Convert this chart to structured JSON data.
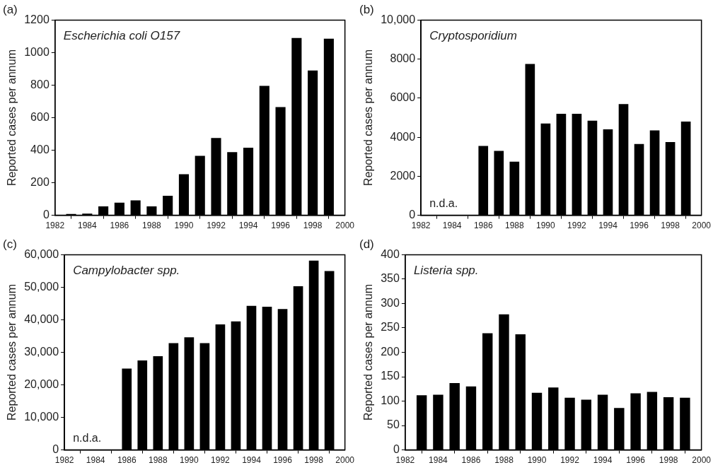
{
  "chart_data": [
    {
      "type": "bar",
      "title": "(a)",
      "ylabel": "Reported cases per annum",
      "annotations": [
        "Escherichia coli O157"
      ],
      "color": "#000000",
      "x": [
        1983,
        1984,
        1985,
        1986,
        1987,
        1988,
        1989,
        1990,
        1991,
        1992,
        1993,
        1994,
        1995,
        1996,
        1997,
        1998,
        1999
      ],
      "values": [
        8,
        10,
        55,
        78,
        92,
        55,
        120,
        252,
        365,
        475,
        388,
        415,
        795,
        665,
        1090,
        890,
        1085
      ],
      "xlim": [
        1982,
        2000
      ],
      "xticks": [
        1982,
        1984,
        1986,
        1988,
        1990,
        1992,
        1994,
        1996,
        1998,
        2000
      ],
      "ylim": [
        0,
        1200
      ],
      "yticks": [
        0,
        200,
        400,
        600,
        800,
        1000,
        1200
      ],
      "grid": false,
      "legend": false
    },
    {
      "type": "bar",
      "title": "(b)",
      "ylabel": "Reported cases per annum",
      "annotations": [
        "Cryptosporidium",
        "n.d.a."
      ],
      "color": "#000000",
      "x": [
        1986,
        1987,
        1988,
        1989,
        1990,
        1991,
        1992,
        1993,
        1994,
        1995,
        1996,
        1997,
        1998,
        1999
      ],
      "values": [
        3550,
        3300,
        2750,
        7750,
        4700,
        5200,
        5200,
        4850,
        4400,
        5700,
        3650,
        4350,
        3750,
        4800
      ],
      "xlim": [
        1982,
        2000
      ],
      "xticks": [
        1982,
        1984,
        1986,
        1988,
        1990,
        1992,
        1994,
        1996,
        1998,
        2000
      ],
      "ylim": [
        0,
        10000
      ],
      "yticks": [
        0,
        2000,
        4000,
        6000,
        8000,
        {
          "value": 10000,
          "label": "10,000"
        }
      ],
      "grid": false,
      "legend": false
    },
    {
      "type": "bar",
      "title": "(c)",
      "ylabel": "Reported cases per annum",
      "annotations": [
        "Campylobacter spp.",
        "n.d.a."
      ],
      "color": "#000000",
      "x": [
        1986,
        1987,
        1988,
        1989,
        1990,
        1991,
        1992,
        1993,
        1994,
        1995,
        1996,
        1997,
        1998,
        1999
      ],
      "values": [
        25000,
        27500,
        28800,
        32800,
        34600,
        32800,
        38600,
        39500,
        44300,
        44000,
        43300,
        50300,
        58200,
        55000
      ],
      "xlim": [
        1982,
        2000
      ],
      "xticks": [
        1982,
        1984,
        1986,
        1988,
        1990,
        1992,
        1994,
        1996,
        1998,
        2000
      ],
      "ylim": [
        0,
        60000
      ],
      "yticks": [
        0,
        {
          "value": 10000,
          "label": "10,000"
        },
        {
          "value": 20000,
          "label": "20,000"
        },
        {
          "value": 30000,
          "label": "30,000"
        },
        {
          "value": 40000,
          "label": "40,000"
        },
        {
          "value": 50000,
          "label": "50,000"
        },
        {
          "value": 60000,
          "label": "60,000"
        }
      ],
      "grid": false,
      "legend": false
    },
    {
      "type": "bar",
      "title": "(d)",
      "ylabel": "Reported cases per annum",
      "annotations": [
        "Listeria spp."
      ],
      "color": "#000000",
      "x": [
        1983,
        1984,
        1985,
        1986,
        1987,
        1988,
        1989,
        1990,
        1991,
        1992,
        1993,
        1994,
        1995,
        1996,
        1997,
        1998,
        1999
      ],
      "values": [
        112,
        113,
        137,
        130,
        239,
        278,
        237,
        117,
        128,
        107,
        103,
        113,
        86,
        116,
        119,
        108,
        107
      ],
      "xlim": [
        1982,
        2000
      ],
      "xticks": [
        1982,
        1984,
        1986,
        1988,
        1990,
        1992,
        1994,
        1996,
        1998,
        2000
      ],
      "ylim": [
        0,
        400
      ],
      "yticks": [
        0,
        50,
        100,
        150,
        200,
        250,
        300,
        350,
        400
      ],
      "grid": false,
      "legend": false
    }
  ]
}
